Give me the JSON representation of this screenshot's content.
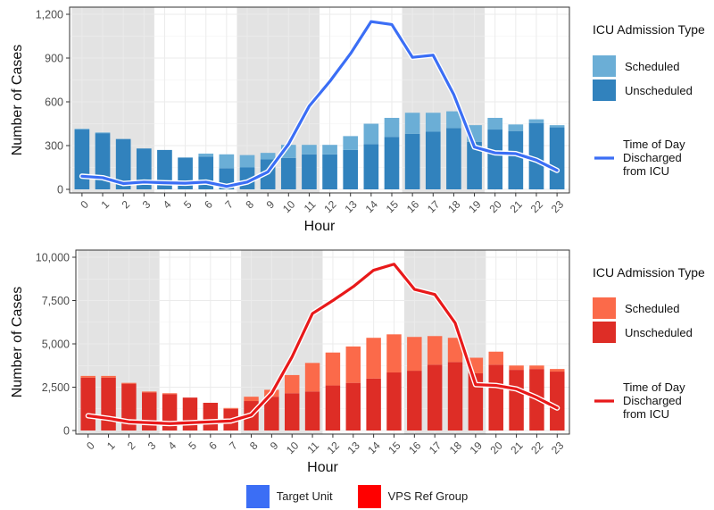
{
  "chart_data": [
    {
      "type": "bar",
      "id": "target",
      "xlabel": "Hour",
      "ylabel": "Number of Cases",
      "ylim": [
        0,
        1200
      ],
      "yticks": [
        0,
        300,
        600,
        900,
        1200
      ],
      "ytick_labels": [
        "0",
        "300",
        "600",
        "900",
        "1,200"
      ],
      "categories": [
        "0",
        "1",
        "2",
        "3",
        "4",
        "5",
        "6",
        "7",
        "8",
        "9",
        "10",
        "11",
        "12",
        "13",
        "14",
        "15",
        "16",
        "17",
        "18",
        "19",
        "20",
        "21",
        "22",
        "23"
      ],
      "shaded_hours": [
        [
          0,
          4
        ],
        [
          8,
          12
        ],
        [
          16,
          20
        ]
      ],
      "series": [
        {
          "name": "Unscheduled",
          "color": "#3182bd",
          "values": [
            410,
            385,
            345,
            280,
            270,
            218,
            225,
            145,
            150,
            205,
            215,
            240,
            240,
            270,
            310,
            360,
            380,
            395,
            420,
            325,
            410,
            400,
            455,
            425
          ]
        },
        {
          "name": "Scheduled",
          "color": "#6baed6",
          "values": [
            5,
            5,
            0,
            0,
            0,
            0,
            20,
            95,
            85,
            45,
            90,
            65,
            65,
            95,
            140,
            130,
            145,
            130,
            115,
            115,
            80,
            45,
            25,
            15
          ]
        },
        {
          "name": "Time of Day Discharged from ICU",
          "color": "#3b6ef5",
          "line": true,
          "values": [
            90,
            80,
            40,
            50,
            45,
            42,
            50,
            20,
            50,
            120,
            310,
            570,
            740,
            930,
            1150,
            1130,
            905,
            920,
            650,
            290,
            250,
            245,
            200,
            130
          ]
        }
      ],
      "legend": {
        "title": "ICU Admission Type",
        "fill_labels": [
          "Scheduled",
          "Unscheduled"
        ],
        "line_label": [
          "Time of Day",
          "Discharged",
          "from ICU"
        ]
      }
    },
    {
      "type": "bar",
      "id": "vps",
      "xlabel": "Hour",
      "ylabel": "Number of Cases",
      "ylim": [
        0,
        10000
      ],
      "yticks": [
        0,
        2500,
        5000,
        7500,
        10000
      ],
      "ytick_labels": [
        "0",
        "2,500",
        "5,000",
        "7,500",
        "10,000"
      ],
      "categories": [
        "0",
        "1",
        "2",
        "3",
        "4",
        "5",
        "6",
        "7",
        "8",
        "9",
        "10",
        "11",
        "12",
        "13",
        "14",
        "15",
        "16",
        "17",
        "18",
        "19",
        "20",
        "21",
        "22",
        "23"
      ],
      "shaded_hours": [
        [
          0,
          4
        ],
        [
          8,
          12
        ],
        [
          16,
          20
        ]
      ],
      "series": [
        {
          "name": "Unscheduled",
          "color": "#de2d26",
          "values": [
            3050,
            3050,
            2700,
            2200,
            2100,
            1900,
            1600,
            1250,
            1700,
            1950,
            2150,
            2250,
            2600,
            2750,
            3000,
            3350,
            3450,
            3800,
            3950,
            3300,
            3800,
            3500,
            3550,
            3400
          ]
        },
        {
          "name": "Scheduled",
          "color": "#fb6a4a",
          "values": [
            100,
            100,
            50,
            50,
            50,
            0,
            0,
            50,
            250,
            400,
            1050,
            1650,
            1900,
            2100,
            2350,
            2200,
            1950,
            1650,
            1400,
            900,
            750,
            250,
            200,
            150
          ]
        },
        {
          "name": "Time of Day Discharged from ICU",
          "color": "#e8191a",
          "line": true,
          "values": [
            850,
            700,
            500,
            450,
            400,
            450,
            500,
            550,
            900,
            2150,
            4250,
            6750,
            7500,
            8300,
            9250,
            9600,
            8150,
            7850,
            6200,
            2650,
            2600,
            2400,
            1900,
            1300
          ]
        }
      ],
      "legend": {
        "title": "ICU Admission Type",
        "fill_labels": [
          "Scheduled",
          "Unscheduled"
        ],
        "line_label": [
          "Time of Day",
          "Discharged",
          "from ICU"
        ]
      }
    }
  ],
  "bottom_legend": [
    {
      "label": "Target Unit",
      "color": "#3b6ef5"
    },
    {
      "label": "VPS Ref Group",
      "color": "#ff0000"
    }
  ]
}
